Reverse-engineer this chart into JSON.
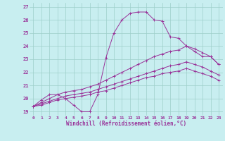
{
  "xlabel": "Windchill (Refroidissement éolien,°C)",
  "ylabel": "",
  "xlim": [
    -0.5,
    23.5
  ],
  "ylim": [
    18.7,
    27.3
  ],
  "yticks": [
    19,
    20,
    21,
    22,
    23,
    24,
    25,
    26,
    27
  ],
  "xticks": [
    0,
    1,
    2,
    3,
    4,
    5,
    6,
    7,
    8,
    9,
    10,
    11,
    12,
    13,
    14,
    15,
    16,
    17,
    18,
    19,
    20,
    21,
    22,
    23
  ],
  "background_color": "#c8eef0",
  "grid_color": "#9ecfca",
  "line_color": "#993399",
  "curves": [
    {
      "x": [
        0,
        1,
        2,
        3,
        4,
        5,
        6,
        7,
        8,
        9,
        10,
        11,
        12,
        13,
        14,
        15,
        16,
        17,
        18,
        19,
        20,
        21,
        22,
        23
      ],
      "y": [
        19.4,
        19.9,
        20.3,
        20.3,
        20.0,
        19.5,
        19.0,
        19.0,
        20.3,
        23.1,
        25.0,
        26.0,
        26.5,
        26.6,
        26.6,
        26.0,
        25.9,
        24.7,
        24.6,
        24.0,
        23.6,
        23.2,
        23.2,
        22.6
      ]
    },
    {
      "x": [
        0,
        1,
        2,
        3,
        4,
        5,
        6,
        7,
        8,
        9,
        10,
        11,
        12,
        13,
        14,
        15,
        16,
        17,
        18,
        19,
        20,
        21,
        22,
        23
      ],
      "y": [
        19.4,
        19.7,
        20.0,
        20.3,
        20.5,
        20.6,
        20.7,
        20.9,
        21.1,
        21.4,
        21.7,
        22.0,
        22.3,
        22.6,
        22.9,
        23.2,
        23.4,
        23.6,
        23.7,
        24.0,
        23.8,
        23.5,
        23.2,
        22.6
      ]
    },
    {
      "x": [
        0,
        1,
        2,
        3,
        4,
        5,
        6,
        7,
        8,
        9,
        10,
        11,
        12,
        13,
        14,
        15,
        16,
        17,
        18,
        19,
        20,
        21,
        22,
        23
      ],
      "y": [
        19.4,
        19.6,
        19.8,
        20.0,
        20.2,
        20.3,
        20.4,
        20.5,
        20.7,
        20.9,
        21.1,
        21.3,
        21.5,
        21.7,
        21.9,
        22.1,
        22.3,
        22.5,
        22.6,
        22.8,
        22.6,
        22.4,
        22.1,
        21.8
      ]
    },
    {
      "x": [
        0,
        1,
        2,
        3,
        4,
        5,
        6,
        7,
        8,
        9,
        10,
        11,
        12,
        13,
        14,
        15,
        16,
        17,
        18,
        19,
        20,
        21,
        22,
        23
      ],
      "y": [
        19.4,
        19.5,
        19.7,
        19.9,
        20.0,
        20.1,
        20.2,
        20.3,
        20.5,
        20.6,
        20.8,
        21.0,
        21.2,
        21.4,
        21.6,
        21.7,
        21.9,
        22.0,
        22.1,
        22.3,
        22.1,
        21.9,
        21.7,
        21.4
      ]
    }
  ]
}
